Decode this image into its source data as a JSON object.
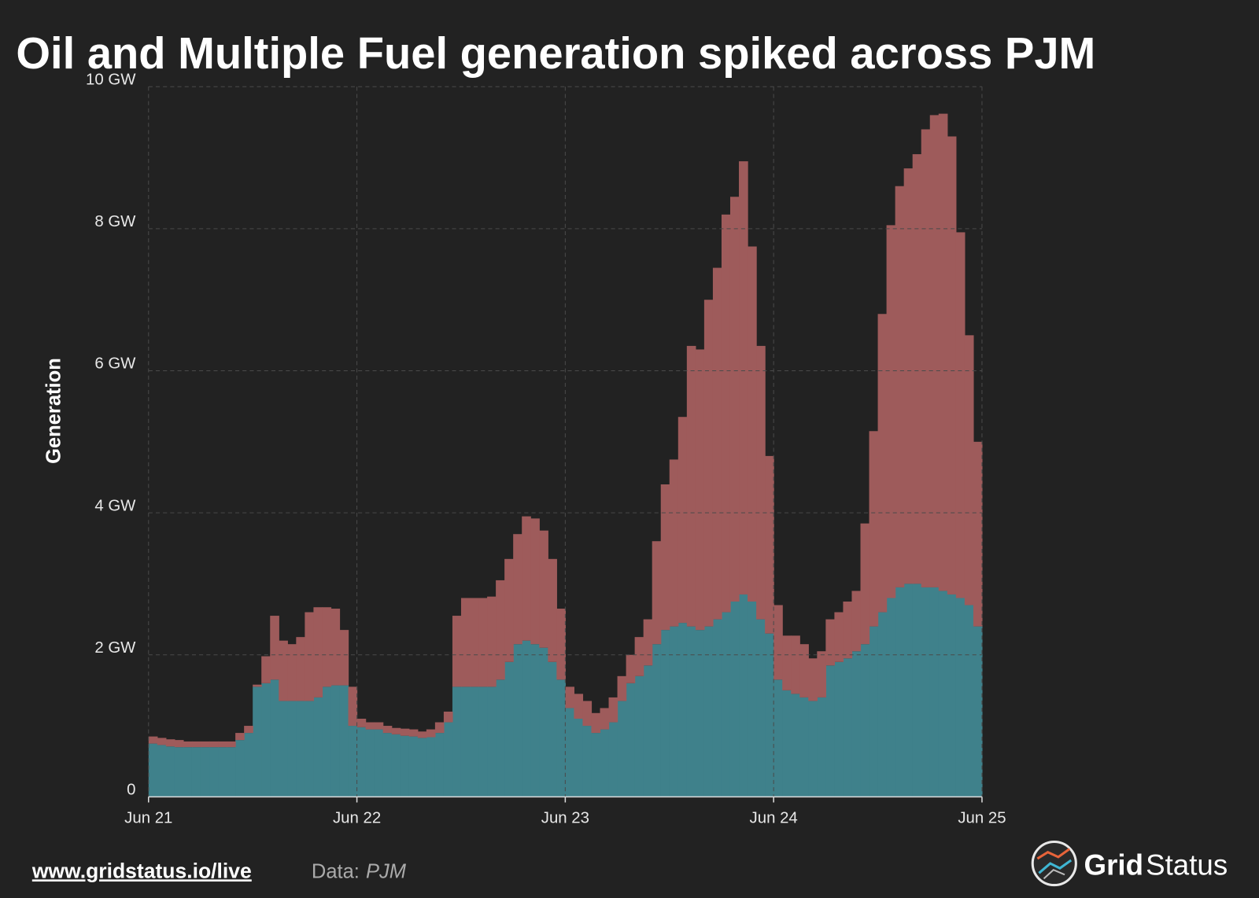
{
  "chart_data": {
    "type": "area",
    "stacked": true,
    "step": true,
    "title": "Oil and Multiple Fuel generation spiked across PJM",
    "ylabel": "Generation",
    "x": [
      0,
      1,
      2,
      3,
      4,
      5,
      6,
      7,
      8,
      9,
      10,
      11,
      12,
      13,
      14,
      15,
      16,
      17,
      18,
      19,
      20,
      21,
      22,
      23,
      24,
      25,
      26,
      27,
      28,
      29,
      30,
      31,
      32,
      33,
      34,
      35,
      36,
      37,
      38,
      39,
      40,
      41,
      42,
      43,
      44,
      45,
      46,
      47,
      48,
      49,
      50,
      51,
      52,
      53,
      54,
      55,
      56,
      57,
      58,
      59,
      60,
      61,
      62,
      63,
      64,
      65,
      66,
      67,
      68,
      69,
      70,
      71,
      72,
      73,
      74,
      75,
      76,
      77,
      78,
      79,
      80,
      81,
      82,
      83,
      84,
      85,
      86,
      87,
      88,
      89,
      90,
      91,
      92,
      93,
      94,
      95
    ],
    "series": [
      {
        "color": "#3f818b",
        "values": [
          0.75,
          0.73,
          0.71,
          0.7,
          0.7,
          0.7,
          0.7,
          0.7,
          0.7,
          0.7,
          0.8,
          0.9,
          1.55,
          1.6,
          1.65,
          1.35,
          1.35,
          1.35,
          1.35,
          1.4,
          1.55,
          1.57,
          1.57,
          1.0,
          0.98,
          0.95,
          0.95,
          0.9,
          0.88,
          0.86,
          0.85,
          0.83,
          0.84,
          0.9,
          1.05,
          1.55,
          1.55,
          1.55,
          1.55,
          1.55,
          1.65,
          1.9,
          2.15,
          2.2,
          2.15,
          2.1,
          1.9,
          1.65,
          1.25,
          1.1,
          1.0,
          0.9,
          0.95,
          1.05,
          1.35,
          1.6,
          1.7,
          1.85,
          2.15,
          2.35,
          2.4,
          2.45,
          2.4,
          2.35,
          2.4,
          2.5,
          2.6,
          2.75,
          2.85,
          2.75,
          2.5,
          2.3,
          1.65,
          1.5,
          1.45,
          1.4,
          1.35,
          1.4,
          1.85,
          1.9,
          1.95,
          2.05,
          2.15,
          2.4,
          2.6,
          2.8,
          2.95,
          3.0,
          3.0,
          2.95,
          2.95,
          2.9,
          2.85,
          2.8,
          2.7,
          2.4
        ]
      },
      {
        "color": "#9e5b5b",
        "values": [
          0.1,
          0.1,
          0.1,
          0.1,
          0.08,
          0.08,
          0.08,
          0.08,
          0.08,
          0.08,
          0.1,
          0.1,
          0.03,
          0.38,
          0.9,
          0.85,
          0.8,
          0.9,
          1.25,
          1.27,
          1.12,
          1.08,
          0.78,
          0.55,
          0.12,
          0.1,
          0.1,
          0.1,
          0.09,
          0.1,
          0.1,
          0.09,
          0.11,
          0.15,
          0.15,
          1.0,
          1.25,
          1.25,
          1.25,
          1.27,
          1.4,
          1.45,
          1.55,
          1.75,
          1.77,
          1.65,
          1.45,
          1.0,
          0.3,
          0.35,
          0.35,
          0.28,
          0.3,
          0.35,
          0.35,
          0.4,
          0.55,
          0.65,
          1.45,
          2.05,
          2.35,
          2.9,
          3.95,
          3.95,
          4.6,
          4.95,
          5.6,
          5.7,
          6.1,
          5.0,
          3.85,
          2.5,
          1.05,
          0.77,
          0.82,
          0.75,
          0.6,
          0.65,
          0.65,
          0.7,
          0.8,
          0.85,
          1.7,
          2.75,
          4.2,
          5.25,
          5.65,
          5.85,
          6.05,
          6.45,
          6.65,
          6.72,
          6.45,
          5.15,
          3.8,
          2.6
        ]
      }
    ],
    "xlim": [
      0,
      96
    ],
    "xticks": [
      {
        "value": 0,
        "label": "Jun 21"
      },
      {
        "value": 24,
        "label": "Jun 22"
      },
      {
        "value": 48,
        "label": "Jun 23"
      },
      {
        "value": 72,
        "label": "Jun 24"
      },
      {
        "value": 96,
        "label": "Jun 25"
      }
    ],
    "ylim": [
      0,
      10
    ],
    "yticks": [
      0,
      {
        "value": 2,
        "label": "2 GW"
      },
      {
        "value": 4,
        "label": "4 GW"
      },
      {
        "value": 6,
        "label": "6 GW"
      },
      {
        "value": 8,
        "label": "8 GW"
      },
      {
        "value": 10,
        "label": "10 GW"
      }
    ],
    "grid": true
  },
  "footer": {
    "link": "www.gridstatus.io/live",
    "source_label": "Data:",
    "source": "PJM",
    "brand": [
      "Grid",
      "Status"
    ]
  }
}
